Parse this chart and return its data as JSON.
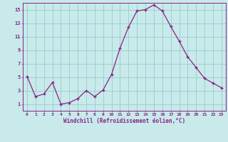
{
  "x": [
    0,
    1,
    2,
    3,
    4,
    5,
    6,
    7,
    8,
    9,
    10,
    11,
    12,
    13,
    14,
    15,
    16,
    17,
    18,
    19,
    20,
    21,
    22,
    23
  ],
  "y": [
    5.1,
    2.1,
    2.5,
    4.2,
    1.0,
    1.2,
    1.8,
    3.0,
    2.1,
    3.1,
    5.4,
    9.3,
    12.4,
    14.8,
    15.0,
    15.7,
    14.8,
    12.5,
    10.3,
    8.0,
    6.4,
    4.8,
    4.1,
    3.4
  ],
  "line_color": "#882288",
  "marker": "+",
  "bg_color": "#c8eaea",
  "grid_color": "#99cccc",
  "xlabel": "Windchill (Refroidissement éolien,°C)",
  "xlabel_color": "#882288",
  "tick_color": "#882288",
  "ylim": [
    0,
    16
  ],
  "xlim": [
    -0.5,
    23.5
  ],
  "yticks": [
    1,
    3,
    5,
    7,
    9,
    11,
    13,
    15
  ],
  "xticks": [
    0,
    1,
    2,
    3,
    4,
    5,
    6,
    7,
    8,
    9,
    10,
    11,
    12,
    13,
    14,
    15,
    16,
    17,
    18,
    19,
    20,
    21,
    22,
    23
  ],
  "xtick_labels": [
    "0",
    "1",
    "2",
    "3",
    "4",
    "5",
    "6",
    "7",
    "8",
    "9",
    "10",
    "11",
    "12",
    "13",
    "14",
    "15",
    "16",
    "17",
    "18",
    "19",
    "20",
    "21",
    "22",
    "23"
  ]
}
